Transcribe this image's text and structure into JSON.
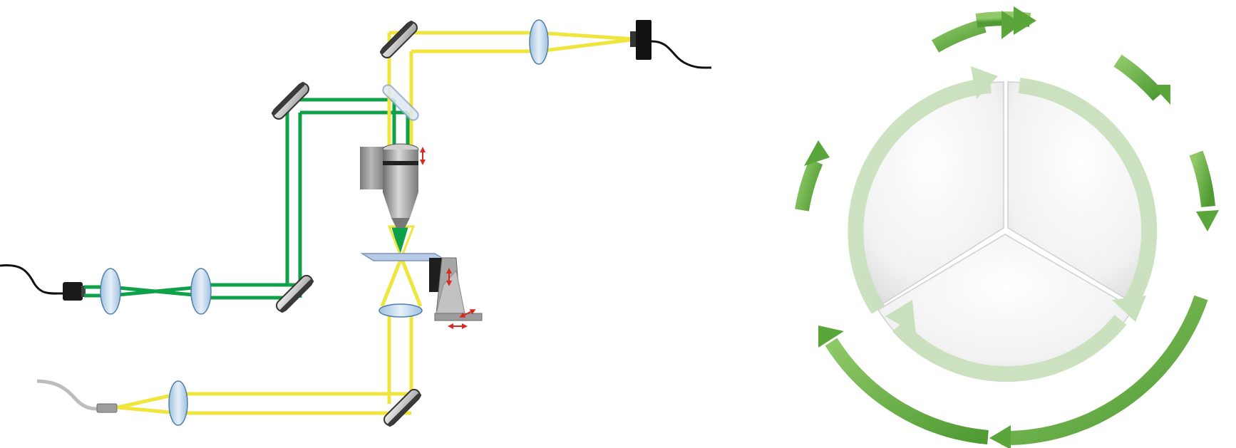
{
  "figure": {
    "left_panel": {
      "name": "optical-setup",
      "beams": {
        "excitation": "green",
        "emission": "yellow"
      },
      "elements": [
        "fiber-input-left",
        "fiber-collimator",
        "lens",
        "lens",
        "mirror",
        "mirror",
        "dichroic-mirror",
        "mirror",
        "lens",
        "camera-detector",
        "objective",
        "sample-slide",
        "condenser-lens",
        "translation-stage",
        "mirror",
        "lens",
        "fiber-output"
      ],
      "motion_indicators": [
        "objective-z-arrow",
        "stage-z-arrow",
        "stage-x-arrow",
        "stage-y-arrow"
      ]
    },
    "right_panel": {
      "name": "cycle-diagram",
      "segments": 3,
      "outer_arrows": 7
    }
  },
  "colors": {
    "green_beam": "#0fa14a",
    "yellow_beam": "#f0e53c",
    "lens_fill": "#c8ddf0",
    "mirror": "#8a8a8a",
    "arrow_green": "#6cb245",
    "cycle_light": "#c9e0bd",
    "indicator_red": "#d62a22"
  }
}
